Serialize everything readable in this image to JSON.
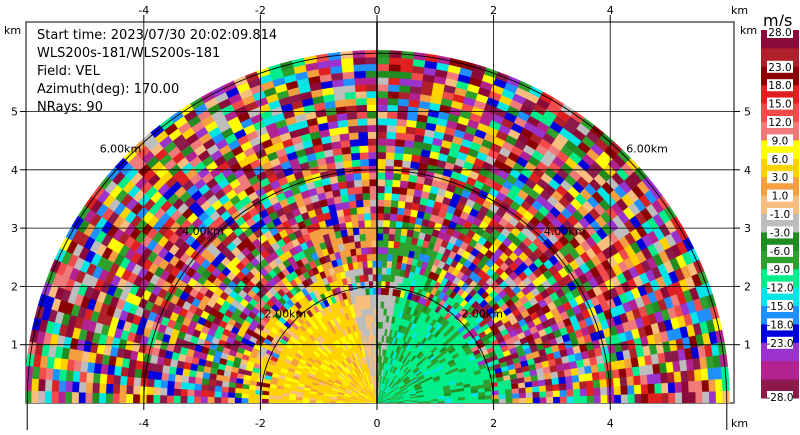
{
  "info": {
    "start_time": "Start time: 2023/07/30 20:02:09.814",
    "instrument": "WLS200s-181/WLS200s-181",
    "field": "Field: VEL",
    "azimuth": "Azimuth(deg): 170.00",
    "nrays": "NRays: 90"
  },
  "axis_unit": "km",
  "colorbar_unit": "m/s",
  "chart_data": {
    "type": "heatmap",
    "projection": "RHI semicircle (range-height)",
    "x_ticks": [
      -4,
      -2,
      0,
      2,
      4
    ],
    "y_ticks": [
      1,
      2,
      3,
      4,
      5
    ],
    "xlim": [
      -6,
      6
    ],
    "ylim": [
      0,
      6
    ],
    "range_rings_km": [
      2,
      4,
      6
    ],
    "ring_labels": [
      "2.00km",
      "4.00km",
      "6.00km"
    ],
    "colorbar_labels": [
      "28.0",
      "23.0",
      "18.0",
      "15.0",
      "12.0",
      "9.0",
      "6.0",
      "3.0",
      "1.0",
      "-1.0",
      "-3.0",
      "-6.0",
      "-9.0",
      "-12.0",
      "-15.0",
      "-18.0",
      "-23.0",
      "-28.0"
    ],
    "colorbar_colors": [
      "#8b0a3a",
      "#b0202a",
      "#8b0000",
      "#e02020",
      "#f24b4b",
      "#f07a7a",
      "#ffff00",
      "#ffd300",
      "#f4a040",
      "#f7be7d",
      "#bdbdbd",
      "#228b22",
      "#2ea02e",
      "#00ee8a",
      "#00e5e5",
      "#1e90ff",
      "#0000dd",
      "#9a32cd",
      "#b22290",
      "#8b1a4a"
    ]
  }
}
